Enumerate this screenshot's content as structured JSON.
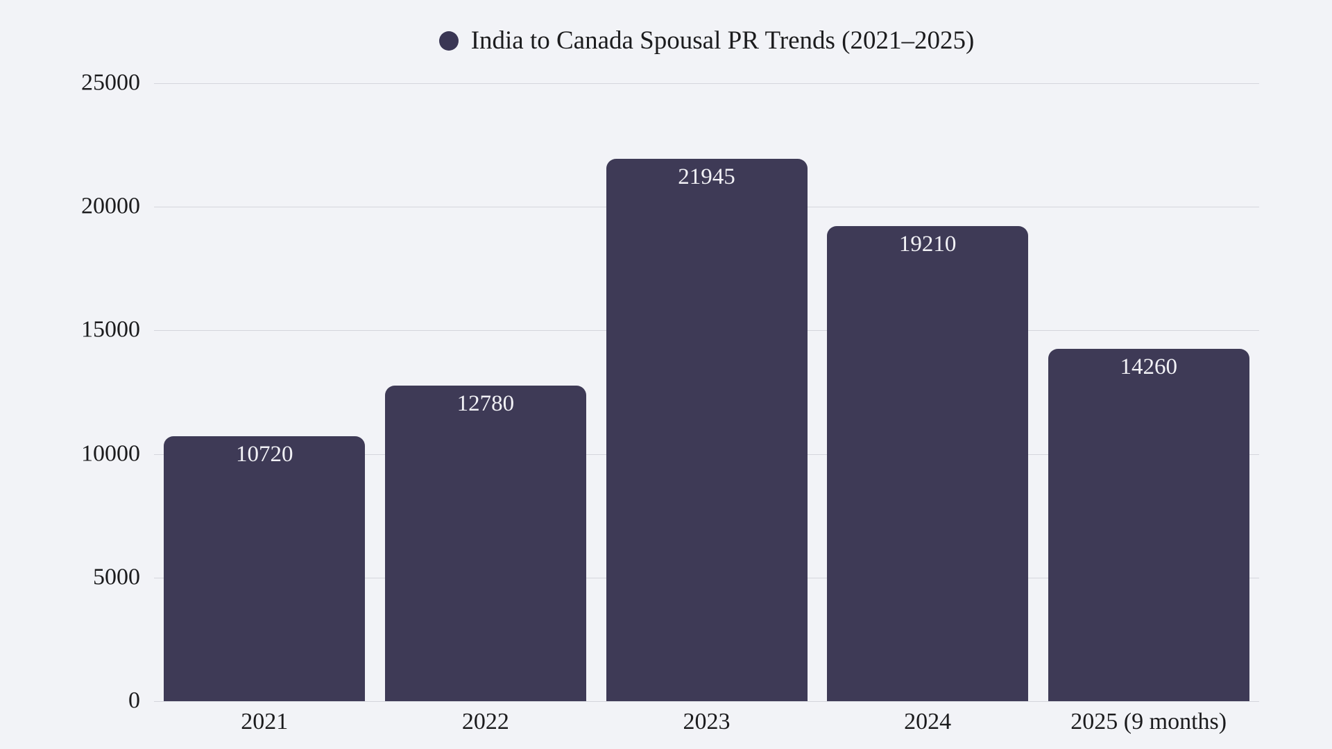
{
  "page": {
    "background_color": "#f2f3f7"
  },
  "legend": {
    "marker": "circle-icon",
    "marker_color": "#3a3654",
    "label": "India to Canada Spousal PR Trends (2021–2025)",
    "position": "top-center"
  },
  "chart_data": {
    "type": "bar",
    "title": "India to Canada Spousal PR Trends (2021–2025)",
    "categories": [
      "2021",
      "2022",
      "2023",
      "2024",
      "2025 (9 months)"
    ],
    "values": [
      10720,
      12780,
      21945,
      19210,
      14260
    ],
    "value_labels": [
      "10720",
      "12780",
      "21945",
      "19210",
      "14260"
    ],
    "series": [
      {
        "name": "India to Canada Spousal PR Trends (2021–2025)",
        "values": [
          10720,
          12780,
          21945,
          19210,
          14260
        ]
      }
    ],
    "xlabel": "",
    "ylabel": "",
    "ylim": [
      0,
      25000
    ],
    "y_ticks": [
      0,
      5000,
      10000,
      15000,
      20000,
      25000
    ],
    "y_tick_labels": [
      "0",
      "5000",
      "10000",
      "15000",
      "20000",
      "25000"
    ],
    "grid": true,
    "gridline_color": "#d4d5dc",
    "legend_position": "top-center",
    "bar_color": "#3e3a56",
    "value_label_color": "#f2f2f6",
    "axis_label_color": "#1b1b1d",
    "background_color": "#f2f3f7"
  }
}
